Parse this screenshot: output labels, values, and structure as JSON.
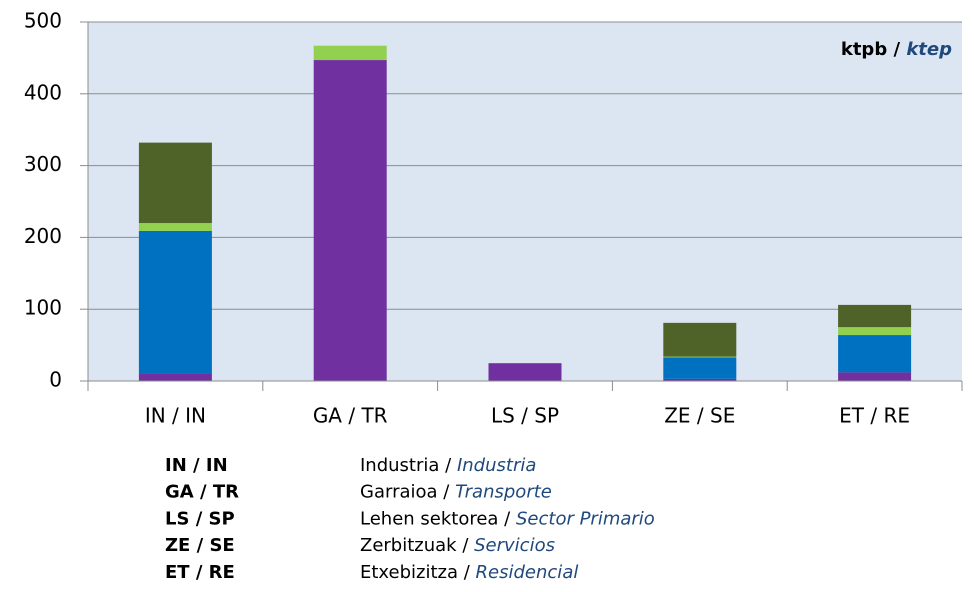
{
  "chart_data": {
    "type": "stacked_bar",
    "categories": [
      "IN / IN",
      "GA / TR",
      "LS / SP",
      "ZE / SE",
      "ET / RE"
    ],
    "series": [
      {
        "color": "#7030a0",
        "values": [
          11,
          447,
          24,
          3,
          12
        ]
      },
      {
        "color": "#0070c0",
        "values": [
          198,
          0,
          0,
          30,
          52
        ]
      },
      {
        "color": "#92d050",
        "values": [
          11,
          20,
          0,
          1,
          11
        ]
      },
      {
        "color": "#4f6228",
        "values": [
          112,
          0,
          1,
          47,
          31
        ]
      }
    ],
    "ylim": [
      0,
      500
    ],
    "yticks": [
      0,
      100,
      200,
      300,
      400,
      500
    ],
    "grid": true,
    "unit_label": {
      "bold": "ktpb /",
      "italic": "ktep"
    }
  },
  "category_key": [
    {
      "code": "IN / IN",
      "basque": "Industria /",
      "spanish": "Industria"
    },
    {
      "code": "GA / TR",
      "basque": "Garraioa /",
      "spanish": "Transporte"
    },
    {
      "code": "LS / SP",
      "basque": "Lehen sektorea /",
      "spanish": "Sector Primario"
    },
    {
      "code": "ZE / SE",
      "basque": "Zerbitzuak /",
      "spanish": "Servicios"
    },
    {
      "code": "ET / RE",
      "basque": "Etxebizitza /",
      "spanish": "Residencial"
    }
  ]
}
